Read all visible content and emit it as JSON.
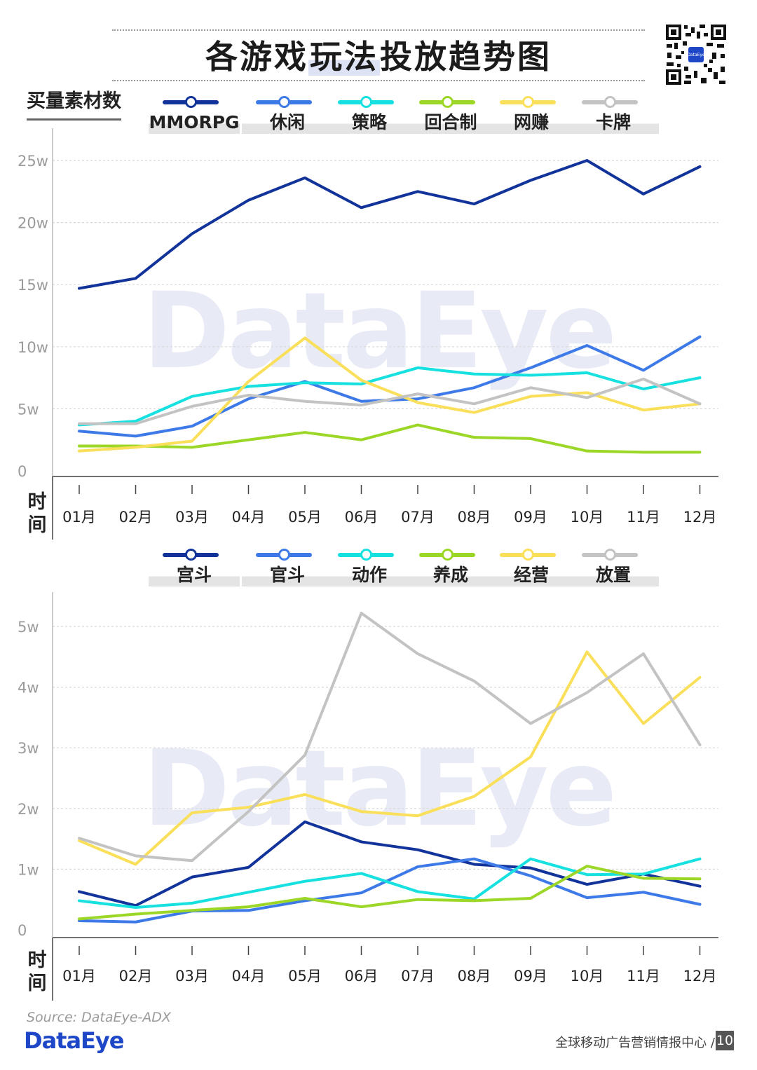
{
  "header": {
    "title_before": "各游戏",
    "title_highlight": "玩法",
    "title_after": "投放趋势图",
    "subtitle": "买量素材数"
  },
  "time_axis_label": [
    "时",
    "间"
  ],
  "footer": {
    "source": "Source: DataEye-ADX",
    "brand": "DataEye",
    "center_name": "全球移动广告营销情报中心",
    "separator": "/",
    "page_number": "10"
  },
  "chart_data": [
    {
      "type": "line",
      "watermark": "DataEye",
      "categories": [
        "01月",
        "02月",
        "03月",
        "04月",
        "05月",
        "06月",
        "07月",
        "08月",
        "09月",
        "10月",
        "11月",
        "12月"
      ],
      "ylim": [
        0,
        26
      ],
      "yticks": [
        0,
        5,
        10,
        15,
        20,
        25
      ],
      "ytick_labels": [
        "0",
        "5w",
        "10w",
        "15w",
        "20w",
        "25w"
      ],
      "series": [
        {
          "name": "MMORPG",
          "color": "#11339a",
          "values": [
            14.7,
            15.5,
            19.1,
            21.8,
            23.6,
            21.2,
            22.5,
            21.5,
            23.4,
            25.0,
            22.3,
            24.5
          ]
        },
        {
          "name": "休闲",
          "color": "#3d7ae8",
          "values": [
            3.2,
            2.8,
            3.6,
            5.8,
            7.2,
            5.6,
            5.8,
            6.7,
            8.3,
            10.1,
            8.1,
            10.8
          ]
        },
        {
          "name": "策略",
          "color": "#16e0e0",
          "values": [
            3.7,
            4.0,
            6.0,
            6.8,
            7.1,
            7.0,
            8.3,
            7.8,
            7.7,
            7.9,
            6.6,
            7.5
          ]
        },
        {
          "name": "回合制",
          "color": "#9cd728",
          "values": [
            2.0,
            2.0,
            1.9,
            2.5,
            3.1,
            2.5,
            3.7,
            2.7,
            2.6,
            1.6,
            1.5,
            1.5
          ]
        },
        {
          "name": "网赚",
          "color": "#fadf5a",
          "values": [
            1.6,
            1.9,
            2.4,
            7.2,
            10.7,
            7.3,
            5.5,
            4.7,
            6.0,
            6.3,
            4.9,
            5.4
          ]
        },
        {
          "name": "卡牌",
          "color": "#c3c3c3",
          "values": [
            3.8,
            3.8,
            5.2,
            6.1,
            5.6,
            5.3,
            6.2,
            5.4,
            6.7,
            5.9,
            7.4,
            5.4
          ]
        }
      ]
    },
    {
      "type": "line",
      "watermark": "DataEye",
      "categories": [
        "01月",
        "02月",
        "03月",
        "04月",
        "05月",
        "06月",
        "07月",
        "08月",
        "09月",
        "10月",
        "11月",
        "12月"
      ],
      "ylim": [
        0,
        5.6
      ],
      "yticks": [
        0,
        1,
        2,
        3,
        4,
        5
      ],
      "ytick_labels": [
        "0",
        "1w",
        "2w",
        "3w",
        "4w",
        "5w"
      ],
      "series": [
        {
          "name": "宫斗",
          "color": "#11339a",
          "values": [
            0.63,
            0.4,
            0.87,
            1.03,
            1.78,
            1.45,
            1.32,
            1.08,
            1.02,
            0.75,
            0.92,
            0.72
          ]
        },
        {
          "name": "官斗",
          "color": "#3d7ae8",
          "values": [
            0.15,
            0.13,
            0.31,
            0.32,
            0.48,
            0.61,
            1.04,
            1.17,
            0.89,
            0.53,
            0.62,
            0.42
          ]
        },
        {
          "name": "动作",
          "color": "#16e0e0",
          "values": [
            0.48,
            0.37,
            0.44,
            0.62,
            0.8,
            0.93,
            0.63,
            0.51,
            1.17,
            0.91,
            0.92,
            1.17
          ]
        },
        {
          "name": "养成",
          "color": "#9cd728",
          "values": [
            0.18,
            0.26,
            0.32,
            0.38,
            0.52,
            0.38,
            0.5,
            0.48,
            0.52,
            1.05,
            0.85,
            0.84
          ]
        },
        {
          "name": "经营",
          "color": "#fadf5a",
          "values": [
            1.47,
            1.08,
            1.93,
            2.02,
            2.23,
            1.95,
            1.88,
            2.2,
            2.85,
            4.58,
            3.4,
            4.16
          ]
        },
        {
          "name": "放置",
          "color": "#c3c3c3",
          "values": [
            1.51,
            1.22,
            1.14,
            1.95,
            2.88,
            5.22,
            4.55,
            4.1,
            3.4,
            3.91,
            4.55,
            3.05
          ]
        }
      ]
    }
  ]
}
